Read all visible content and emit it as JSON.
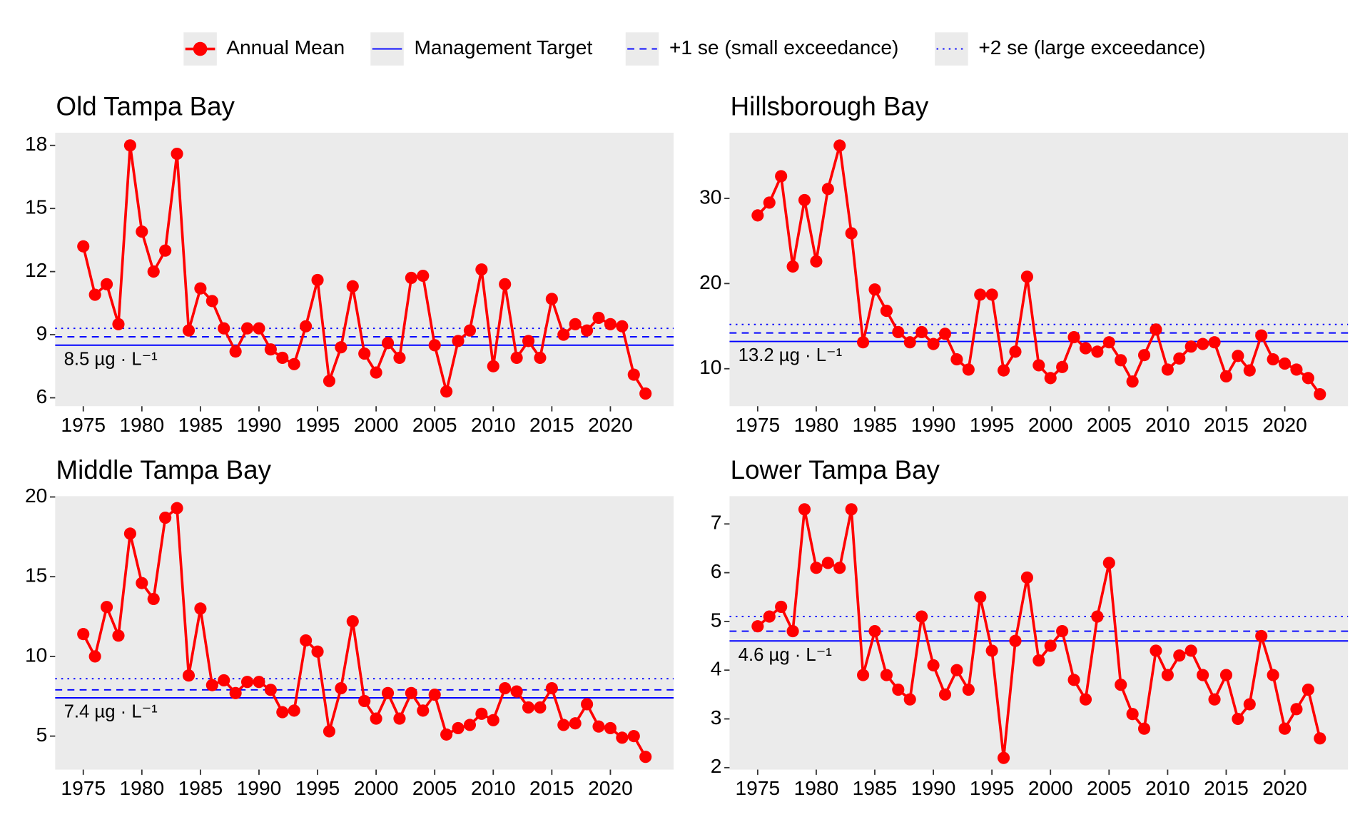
{
  "legend": {
    "entries": [
      {
        "label": "Annual Mean",
        "color": "#ff0000",
        "style": "point-line"
      },
      {
        "label": "Management Target",
        "color": "#0000ff",
        "style": "solid"
      },
      {
        "label": "+1 se (small exceedance)",
        "color": "#0000ff",
        "style": "dashed"
      },
      {
        "label": "+2 se (large exceedance)",
        "color": "#0000ff",
        "style": "dotted"
      }
    ]
  },
  "chart_data": [
    {
      "type": "line",
      "title": "Old Tampa Bay",
      "color": "#ff0000",
      "x": [
        1975,
        1976,
        1977,
        1978,
        1979,
        1980,
        1981,
        1982,
        1983,
        1984,
        1985,
        1986,
        1987,
        1988,
        1989,
        1990,
        1991,
        1992,
        1993,
        1994,
        1995,
        1996,
        1997,
        1998,
        1999,
        2000,
        2001,
        2002,
        2003,
        2004,
        2005,
        2006,
        2007,
        2008,
        2009,
        2010,
        2011,
        2012,
        2013,
        2014,
        2015,
        2016,
        2017,
        2018,
        2019,
        2020,
        2021,
        2022,
        2023
      ],
      "values": [
        13.2,
        10.9,
        11.4,
        9.5,
        18.0,
        13.9,
        12.0,
        13.0,
        17.6,
        9.2,
        11.2,
        10.6,
        9.3,
        8.2,
        9.3,
        9.3,
        8.3,
        7.9,
        7.6,
        9.4,
        11.6,
        6.8,
        8.4,
        11.3,
        8.1,
        7.2,
        8.6,
        7.9,
        11.7,
        11.8,
        8.5,
        6.3,
        8.7,
        9.2,
        12.1,
        7.5,
        11.4,
        7.9,
        8.7,
        7.9,
        10.7,
        9.0,
        9.5,
        9.2,
        9.8,
        9.5,
        9.4,
        7.1,
        6.2
      ],
      "target": {
        "value": 8.5,
        "label": "8.5 µg · L⁻¹",
        "color": "#0000ff"
      },
      "small_exceedance": 8.9,
      "large_exceedance": 9.3,
      "xlim": [
        1972.6,
        2025.4
      ],
      "xticks": [
        1975,
        1980,
        1985,
        1990,
        1995,
        2000,
        2005,
        2010,
        2015,
        2020
      ],
      "ylim": [
        5.6,
        18.6
      ],
      "yticks": [
        6,
        9,
        12,
        15,
        18
      ],
      "grid": false
    },
    {
      "type": "line",
      "title": "Hillsborough Bay",
      "color": "#ff0000",
      "x": [
        1975,
        1976,
        1977,
        1978,
        1979,
        1980,
        1981,
        1982,
        1983,
        1984,
        1985,
        1986,
        1987,
        1988,
        1989,
        1990,
        1991,
        1992,
        1993,
        1994,
        1995,
        1996,
        1997,
        1998,
        1999,
        2000,
        2001,
        2002,
        2003,
        2004,
        2005,
        2006,
        2007,
        2008,
        2009,
        2010,
        2011,
        2012,
        2013,
        2014,
        2015,
        2016,
        2017,
        2018,
        2019,
        2020,
        2021,
        2022,
        2023
      ],
      "values": [
        28.0,
        29.5,
        32.6,
        22.0,
        29.8,
        22.6,
        31.1,
        36.2,
        25.9,
        13.1,
        19.3,
        16.8,
        14.3,
        13.1,
        14.3,
        12.9,
        14.1,
        11.1,
        9.9,
        18.7,
        18.7,
        9.8,
        12.0,
        20.8,
        10.4,
        8.9,
        10.2,
        13.7,
        12.4,
        12.0,
        13.1,
        11.0,
        8.5,
        11.6,
        14.6,
        9.9,
        11.2,
        12.6,
        12.9,
        13.1,
        9.1,
        11.5,
        9.8,
        13.9,
        11.1,
        10.6,
        9.9,
        8.9,
        7.0
      ],
      "target": {
        "value": 13.2,
        "label": "13.2 µg · L⁻¹",
        "color": "#0000ff"
      },
      "small_exceedance": 14.2,
      "large_exceedance": 15.2,
      "xlim": [
        1972.6,
        2025.4
      ],
      "xticks": [
        1975,
        1980,
        1985,
        1990,
        1995,
        2000,
        2005,
        2010,
        2015,
        2020
      ],
      "ylim": [
        5.6,
        37.7
      ],
      "yticks": [
        10,
        20,
        30
      ],
      "grid": false
    },
    {
      "type": "line",
      "title": "Middle Tampa Bay",
      "color": "#ff0000",
      "x": [
        1975,
        1976,
        1977,
        1978,
        1979,
        1980,
        1981,
        1982,
        1983,
        1984,
        1985,
        1986,
        1987,
        1988,
        1989,
        1990,
        1991,
        1992,
        1993,
        1994,
        1995,
        1996,
        1997,
        1998,
        1999,
        2000,
        2001,
        2002,
        2003,
        2004,
        2005,
        2006,
        2007,
        2008,
        2009,
        2010,
        2011,
        2012,
        2013,
        2014,
        2015,
        2016,
        2017,
        2018,
        2019,
        2020,
        2021,
        2022,
        2023
      ],
      "values": [
        11.4,
        10.0,
        13.1,
        11.3,
        17.7,
        14.6,
        13.6,
        18.7,
        19.3,
        8.8,
        13.0,
        8.2,
        8.5,
        7.7,
        8.4,
        8.4,
        7.9,
        6.5,
        6.6,
        11.0,
        10.3,
        5.3,
        8.0,
        12.2,
        7.2,
        6.1,
        7.7,
        6.1,
        7.7,
        6.6,
        7.6,
        5.1,
        5.5,
        5.7,
        6.4,
        6.0,
        8.0,
        7.8,
        6.8,
        6.8,
        8.0,
        5.7,
        5.8,
        7.0,
        5.6,
        5.5,
        4.9,
        5.0,
        3.7
      ],
      "target": {
        "value": 7.4,
        "label": "7.4 µg · L⁻¹",
        "color": "#0000ff"
      },
      "small_exceedance": 7.9,
      "large_exceedance": 8.6,
      "xlim": [
        1972.6,
        2025.4
      ],
      "xticks": [
        1975,
        1980,
        1985,
        1990,
        1995,
        2000,
        2005,
        2010,
        2015,
        2020
      ],
      "ylim": [
        2.9,
        20.05
      ],
      "yticks": [
        5,
        10,
        15,
        20
      ],
      "grid": false
    },
    {
      "type": "line",
      "title": "Lower Tampa Bay",
      "color": "#ff0000",
      "x": [
        1975,
        1976,
        1977,
        1978,
        1979,
        1980,
        1981,
        1982,
        1983,
        1984,
        1985,
        1986,
        1987,
        1988,
        1989,
        1990,
        1991,
        1992,
        1993,
        1994,
        1995,
        1996,
        1997,
        1998,
        1999,
        2000,
        2001,
        2002,
        2003,
        2004,
        2005,
        2006,
        2007,
        2008,
        2009,
        2010,
        2011,
        2012,
        2013,
        2014,
        2015,
        2016,
        2017,
        2018,
        2019,
        2020,
        2021,
        2022,
        2023
      ],
      "values": [
        4.9,
        5.1,
        5.3,
        4.8,
        7.3,
        6.1,
        6.2,
        6.1,
        7.3,
        3.9,
        4.8,
        3.9,
        3.6,
        3.4,
        5.1,
        4.1,
        3.5,
        4.0,
        3.6,
        5.5,
        4.4,
        2.2,
        4.6,
        5.9,
        4.2,
        4.5,
        4.8,
        3.8,
        3.4,
        5.1,
        6.2,
        3.7,
        3.1,
        2.8,
        4.4,
        3.9,
        4.3,
        4.4,
        3.9,
        3.4,
        3.9,
        3.0,
        3.3,
        4.7,
        3.9,
        2.8,
        3.2,
        3.6,
        2.6
      ],
      "target": {
        "value": 4.6,
        "label": "4.6 µg · L⁻¹",
        "color": "#0000ff"
      },
      "small_exceedance": 4.8,
      "large_exceedance": 5.1,
      "xlim": [
        1972.6,
        2025.4
      ],
      "xticks": [
        1975,
        1980,
        1985,
        1990,
        1995,
        2000,
        2005,
        2010,
        2015,
        2020
      ],
      "ylim": [
        1.96,
        7.57
      ],
      "yticks": [
        2,
        3,
        4,
        5,
        6,
        7
      ],
      "grid": false
    }
  ]
}
